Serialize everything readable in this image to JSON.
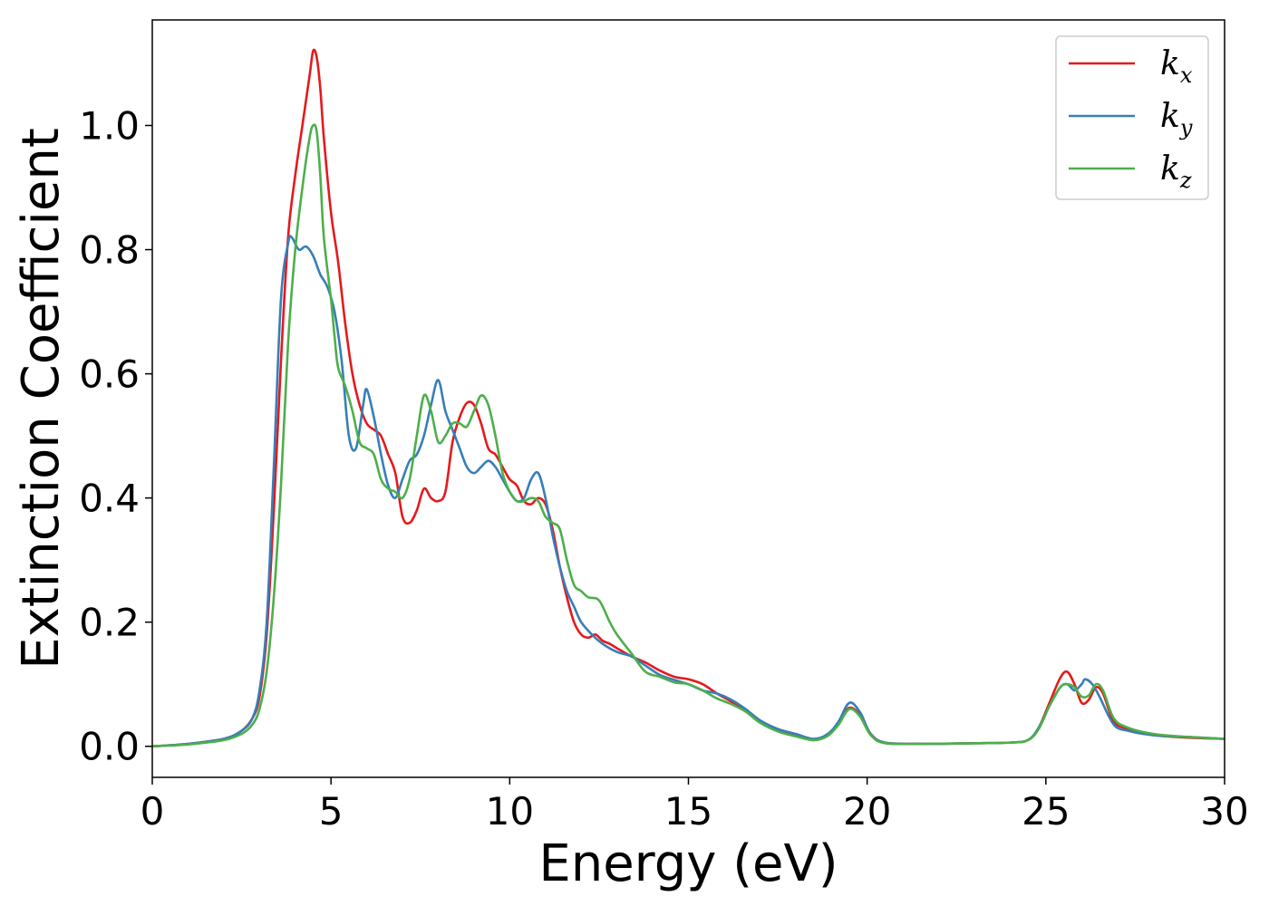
{
  "chart_data": {
    "type": "line",
    "title": "",
    "xlabel": "Energy (eV)",
    "ylabel": "Extinction Coefficient",
    "xlim": [
      0,
      30
    ],
    "ylim": [
      -0.05,
      1.17
    ],
    "xticks": [
      0,
      5,
      10,
      15,
      20,
      25,
      30
    ],
    "xtick_labels": [
      "0",
      "5",
      "10",
      "15",
      "20",
      "25",
      "30"
    ],
    "yticks": [
      0.0,
      0.2,
      0.4,
      0.6,
      0.8,
      1.0
    ],
    "ytick_labels": [
      "0.0",
      "0.2",
      "0.4",
      "0.6",
      "0.8",
      "1.0"
    ],
    "grid": false,
    "legend_position": "top-right",
    "series": [
      {
        "name": "k_x",
        "base": "k",
        "sub": "x",
        "color": "#e41a1c",
        "points": [
          [
            0,
            0.0
          ],
          [
            1,
            0.004
          ],
          [
            2,
            0.012
          ],
          [
            2.5,
            0.025
          ],
          [
            2.8,
            0.045
          ],
          [
            3.0,
            0.08
          ],
          [
            3.2,
            0.18
          ],
          [
            3.4,
            0.38
          ],
          [
            3.6,
            0.62
          ],
          [
            3.8,
            0.82
          ],
          [
            4.0,
            0.92
          ],
          [
            4.2,
            1.0
          ],
          [
            4.4,
            1.08
          ],
          [
            4.5,
            1.12
          ],
          [
            4.6,
            1.11
          ],
          [
            4.7,
            1.06
          ],
          [
            4.8,
            0.98
          ],
          [
            5.0,
            0.86
          ],
          [
            5.2,
            0.78
          ],
          [
            5.4,
            0.68
          ],
          [
            5.6,
            0.6
          ],
          [
            5.8,
            0.55
          ],
          [
            6.0,
            0.52
          ],
          [
            6.2,
            0.51
          ],
          [
            6.4,
            0.5
          ],
          [
            6.6,
            0.47
          ],
          [
            6.8,
            0.44
          ],
          [
            7.0,
            0.37
          ],
          [
            7.2,
            0.36
          ],
          [
            7.4,
            0.38
          ],
          [
            7.6,
            0.415
          ],
          [
            7.8,
            0.4
          ],
          [
            8.0,
            0.395
          ],
          [
            8.2,
            0.41
          ],
          [
            8.4,
            0.49
          ],
          [
            8.6,
            0.53
          ],
          [
            8.8,
            0.553
          ],
          [
            9.0,
            0.55
          ],
          [
            9.2,
            0.52
          ],
          [
            9.4,
            0.48
          ],
          [
            9.6,
            0.47
          ],
          [
            9.8,
            0.45
          ],
          [
            10.0,
            0.43
          ],
          [
            10.2,
            0.42
          ],
          [
            10.4,
            0.395
          ],
          [
            10.6,
            0.39
          ],
          [
            10.8,
            0.4
          ],
          [
            11.0,
            0.39
          ],
          [
            11.2,
            0.35
          ],
          [
            11.4,
            0.29
          ],
          [
            11.6,
            0.24
          ],
          [
            11.8,
            0.2
          ],
          [
            12.0,
            0.18
          ],
          [
            12.2,
            0.175
          ],
          [
            12.4,
            0.18
          ],
          [
            12.6,
            0.17
          ],
          [
            12.8,
            0.165
          ],
          [
            13.0,
            0.158
          ],
          [
            13.4,
            0.145
          ],
          [
            13.8,
            0.135
          ],
          [
            14.2,
            0.122
          ],
          [
            14.6,
            0.112
          ],
          [
            15.0,
            0.108
          ],
          [
            15.4,
            0.1
          ],
          [
            15.8,
            0.085
          ],
          [
            16.2,
            0.072
          ],
          [
            16.6,
            0.058
          ],
          [
            17.0,
            0.04
          ],
          [
            17.5,
            0.026
          ],
          [
            18.0,
            0.018
          ],
          [
            18.5,
            0.01
          ],
          [
            18.9,
            0.018
          ],
          [
            19.2,
            0.038
          ],
          [
            19.5,
            0.062
          ],
          [
            19.8,
            0.05
          ],
          [
            20.1,
            0.02
          ],
          [
            20.5,
            0.006
          ],
          [
            21.5,
            0.004
          ],
          [
            23.0,
            0.005
          ],
          [
            24.0,
            0.006
          ],
          [
            24.5,
            0.01
          ],
          [
            24.8,
            0.03
          ],
          [
            25.1,
            0.07
          ],
          [
            25.4,
            0.11
          ],
          [
            25.6,
            0.12
          ],
          [
            25.8,
            0.1
          ],
          [
            26.0,
            0.07
          ],
          [
            26.2,
            0.075
          ],
          [
            26.4,
            0.095
          ],
          [
            26.6,
            0.085
          ],
          [
            26.9,
            0.04
          ],
          [
            27.3,
            0.028
          ],
          [
            28.0,
            0.018
          ],
          [
            29.0,
            0.014
          ],
          [
            30,
            0.012
          ]
        ]
      },
      {
        "name": "k_y",
        "base": "k",
        "sub": "y",
        "color": "#377eb8",
        "points": [
          [
            0,
            0.0
          ],
          [
            1,
            0.004
          ],
          [
            2,
            0.012
          ],
          [
            2.5,
            0.025
          ],
          [
            2.8,
            0.045
          ],
          [
            3.0,
            0.09
          ],
          [
            3.2,
            0.2
          ],
          [
            3.4,
            0.45
          ],
          [
            3.6,
            0.72
          ],
          [
            3.8,
            0.81
          ],
          [
            3.9,
            0.82
          ],
          [
            4.1,
            0.8
          ],
          [
            4.3,
            0.805
          ],
          [
            4.5,
            0.79
          ],
          [
            4.7,
            0.76
          ],
          [
            4.9,
            0.74
          ],
          [
            5.1,
            0.7
          ],
          [
            5.3,
            0.62
          ],
          [
            5.5,
            0.5
          ],
          [
            5.7,
            0.48
          ],
          [
            5.9,
            0.55
          ],
          [
            6.0,
            0.575
          ],
          [
            6.2,
            0.53
          ],
          [
            6.4,
            0.47
          ],
          [
            6.6,
            0.42
          ],
          [
            6.8,
            0.4
          ],
          [
            7.0,
            0.43
          ],
          [
            7.2,
            0.46
          ],
          [
            7.4,
            0.47
          ],
          [
            7.6,
            0.5
          ],
          [
            7.8,
            0.55
          ],
          [
            8.0,
            0.59
          ],
          [
            8.2,
            0.54
          ],
          [
            8.4,
            0.51
          ],
          [
            8.6,
            0.48
          ],
          [
            8.8,
            0.45
          ],
          [
            9.0,
            0.44
          ],
          [
            9.2,
            0.45
          ],
          [
            9.4,
            0.46
          ],
          [
            9.6,
            0.45
          ],
          [
            9.8,
            0.43
          ],
          [
            10.0,
            0.41
          ],
          [
            10.2,
            0.395
          ],
          [
            10.4,
            0.4
          ],
          [
            10.6,
            0.43
          ],
          [
            10.8,
            0.44
          ],
          [
            11.0,
            0.4
          ],
          [
            11.2,
            0.34
          ],
          [
            11.4,
            0.29
          ],
          [
            11.6,
            0.25
          ],
          [
            11.8,
            0.225
          ],
          [
            12.0,
            0.2
          ],
          [
            12.3,
            0.18
          ],
          [
            12.6,
            0.165
          ],
          [
            13.0,
            0.152
          ],
          [
            13.4,
            0.145
          ],
          [
            13.8,
            0.13
          ],
          [
            14.2,
            0.115
          ],
          [
            14.6,
            0.107
          ],
          [
            15.0,
            0.1
          ],
          [
            15.4,
            0.09
          ],
          [
            15.8,
            0.085
          ],
          [
            16.2,
            0.075
          ],
          [
            16.6,
            0.06
          ],
          [
            17.0,
            0.042
          ],
          [
            17.5,
            0.028
          ],
          [
            18.0,
            0.02
          ],
          [
            18.5,
            0.012
          ],
          [
            18.9,
            0.02
          ],
          [
            19.2,
            0.04
          ],
          [
            19.5,
            0.07
          ],
          [
            19.8,
            0.055
          ],
          [
            20.1,
            0.02
          ],
          [
            20.5,
            0.006
          ],
          [
            21.5,
            0.004
          ],
          [
            23.0,
            0.005
          ],
          [
            24.0,
            0.006
          ],
          [
            24.5,
            0.01
          ],
          [
            24.8,
            0.03
          ],
          [
            25.1,
            0.065
          ],
          [
            25.4,
            0.095
          ],
          [
            25.6,
            0.1
          ],
          [
            25.8,
            0.09
          ],
          [
            26.0,
            0.1
          ],
          [
            26.1,
            0.108
          ],
          [
            26.3,
            0.1
          ],
          [
            26.5,
            0.08
          ],
          [
            26.9,
            0.035
          ],
          [
            27.3,
            0.025
          ],
          [
            28.0,
            0.018
          ],
          [
            29.0,
            0.015
          ],
          [
            30,
            0.012
          ]
        ]
      },
      {
        "name": "k_z",
        "base": "k",
        "sub": "z",
        "color": "#4daf4a",
        "points": [
          [
            0,
            0.0
          ],
          [
            1,
            0.003
          ],
          [
            2,
            0.01
          ],
          [
            2.5,
            0.02
          ],
          [
            2.8,
            0.035
          ],
          [
            3.0,
            0.06
          ],
          [
            3.2,
            0.12
          ],
          [
            3.4,
            0.24
          ],
          [
            3.6,
            0.42
          ],
          [
            3.8,
            0.65
          ],
          [
            4.0,
            0.8
          ],
          [
            4.2,
            0.9
          ],
          [
            4.4,
            0.98
          ],
          [
            4.5,
            1.0
          ],
          [
            4.6,
            0.99
          ],
          [
            4.7,
            0.92
          ],
          [
            4.8,
            0.82
          ],
          [
            5.0,
            0.72
          ],
          [
            5.1,
            0.66
          ],
          [
            5.2,
            0.61
          ],
          [
            5.4,
            0.58
          ],
          [
            5.6,
            0.54
          ],
          [
            5.8,
            0.49
          ],
          [
            6.0,
            0.48
          ],
          [
            6.2,
            0.47
          ],
          [
            6.4,
            0.43
          ],
          [
            6.6,
            0.415
          ],
          [
            6.8,
            0.41
          ],
          [
            7.0,
            0.4
          ],
          [
            7.2,
            0.43
          ],
          [
            7.4,
            0.5
          ],
          [
            7.6,
            0.565
          ],
          [
            7.8,
            0.54
          ],
          [
            8.0,
            0.49
          ],
          [
            8.2,
            0.5
          ],
          [
            8.4,
            0.52
          ],
          [
            8.6,
            0.52
          ],
          [
            8.8,
            0.515
          ],
          [
            9.0,
            0.54
          ],
          [
            9.2,
            0.565
          ],
          [
            9.4,
            0.55
          ],
          [
            9.6,
            0.5
          ],
          [
            9.8,
            0.44
          ],
          [
            10.0,
            0.41
          ],
          [
            10.2,
            0.395
          ],
          [
            10.4,
            0.395
          ],
          [
            10.6,
            0.4
          ],
          [
            10.8,
            0.395
          ],
          [
            11.0,
            0.37
          ],
          [
            11.2,
            0.36
          ],
          [
            11.4,
            0.35
          ],
          [
            11.6,
            0.3
          ],
          [
            11.8,
            0.26
          ],
          [
            12.0,
            0.25
          ],
          [
            12.2,
            0.24
          ],
          [
            12.5,
            0.235
          ],
          [
            12.8,
            0.2
          ],
          [
            13.0,
            0.18
          ],
          [
            13.4,
            0.15
          ],
          [
            13.8,
            0.12
          ],
          [
            14.2,
            0.112
          ],
          [
            14.6,
            0.103
          ],
          [
            15.0,
            0.1
          ],
          [
            15.4,
            0.09
          ],
          [
            15.8,
            0.077
          ],
          [
            16.2,
            0.068
          ],
          [
            16.6,
            0.056
          ],
          [
            17.0,
            0.038
          ],
          [
            17.5,
            0.024
          ],
          [
            18.0,
            0.016
          ],
          [
            18.5,
            0.01
          ],
          [
            18.9,
            0.017
          ],
          [
            19.2,
            0.035
          ],
          [
            19.5,
            0.06
          ],
          [
            19.8,
            0.048
          ],
          [
            20.1,
            0.018
          ],
          [
            20.5,
            0.005
          ],
          [
            21.5,
            0.004
          ],
          [
            23.0,
            0.005
          ],
          [
            24.0,
            0.006
          ],
          [
            24.5,
            0.01
          ],
          [
            24.8,
            0.028
          ],
          [
            25.1,
            0.065
          ],
          [
            25.4,
            0.095
          ],
          [
            25.6,
            0.1
          ],
          [
            25.8,
            0.095
          ],
          [
            26.0,
            0.08
          ],
          [
            26.2,
            0.082
          ],
          [
            26.4,
            0.1
          ],
          [
            26.6,
            0.09
          ],
          [
            26.9,
            0.045
          ],
          [
            27.3,
            0.03
          ],
          [
            28.0,
            0.02
          ],
          [
            29.0,
            0.015
          ],
          [
            30,
            0.012
          ]
        ]
      }
    ]
  }
}
